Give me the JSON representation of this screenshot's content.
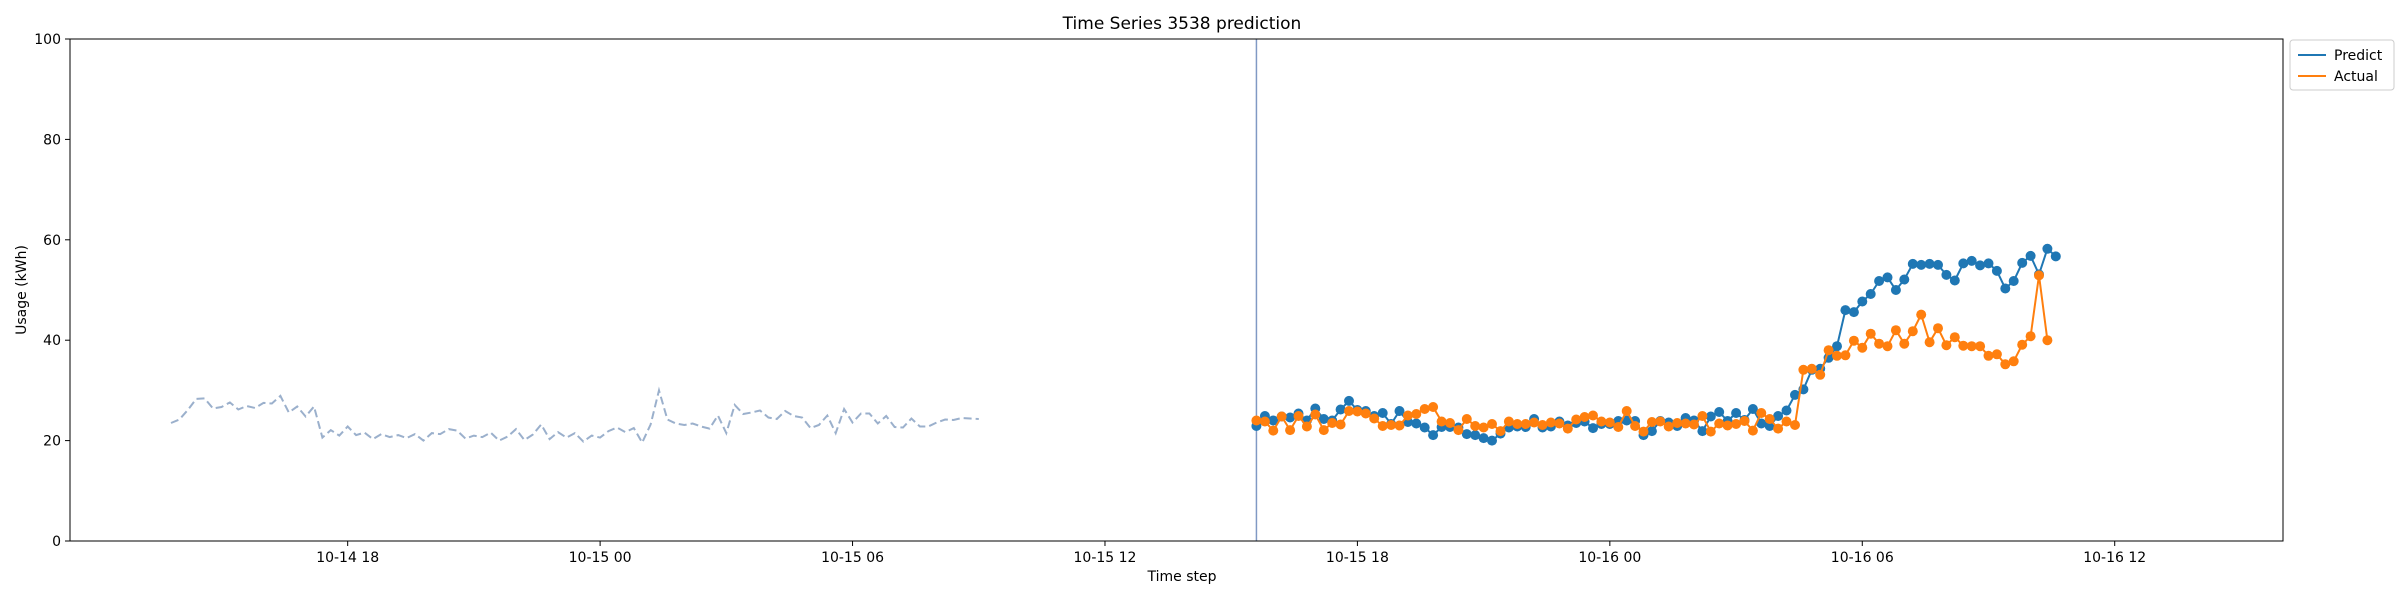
{
  "chart_data": {
    "type": "line",
    "title": "Time Series 3538 prediction",
    "xlabel": "Time step",
    "ylabel": "Usage (kWh)",
    "ylim": [
      0,
      100
    ],
    "yticks": [
      0,
      20,
      40,
      60,
      80,
      100
    ],
    "xlim": [
      -9,
      254
    ],
    "xticks": [
      {
        "value": 24,
        "label": "10-14 18"
      },
      {
        "value": 54,
        "label": "10-15 00"
      },
      {
        "value": 84,
        "label": "10-15 06"
      },
      {
        "value": 114,
        "label": "10-15 12"
      },
      {
        "value": 144,
        "label": "10-15 18"
      },
      {
        "value": 174,
        "label": "10-16 00"
      },
      {
        "value": 204,
        "label": "10-16 06"
      },
      {
        "value": 234,
        "label": "10-16 12"
      }
    ],
    "forecast_start": 132,
    "legend": {
      "position": "top-right",
      "entries": [
        "Predict",
        "Actual"
      ]
    },
    "colors": {
      "predict": "#1f77b4",
      "actual": "#ff7f0e",
      "history": "#9bb0cc",
      "vline": "#8099c4"
    },
    "history": {
      "x_start": 3,
      "values": [
        23.5,
        24.2,
        26.1,
        28.3,
        28.4,
        26.4,
        26.7,
        27.6,
        26.2,
        26.9,
        26.5,
        27.5,
        27.4,
        28.9,
        25.6,
        26.8,
        24.8,
        26.8,
        20.6,
        22.1,
        21.0,
        22.8,
        21.1,
        21.6,
        20.3,
        21.3,
        20.7,
        21.1,
        20.5,
        21.3,
        20.0,
        21.5,
        21.3,
        22.3,
        22.0,
        20.4,
        21.0,
        20.7,
        21.6,
        20.0,
        20.8,
        22.3,
        20.1,
        21.2,
        23.2,
        20.3,
        21.7,
        20.6,
        21.5,
        19.8,
        21.0,
        20.6,
        21.9,
        22.6,
        21.7,
        22.5,
        19.6,
        23.2,
        30.0,
        24.2,
        23.4,
        23.1,
        23.4,
        22.8,
        22.4,
        25.0,
        21.5,
        27.1,
        25.3,
        25.6,
        26.0,
        24.6,
        24.3,
        25.9,
        24.9,
        24.6,
        22.5,
        23.1,
        25.0,
        21.5,
        26.3,
        23.6,
        25.4,
        25.4,
        23.4,
        24.9,
        22.7,
        22.6,
        24.4,
        22.8,
        22.8,
        23.6,
        24.2,
        24.1,
        24.5,
        24.4,
        24.3
      ]
    },
    "series": [
      {
        "name": "Predict",
        "x_start": 132,
        "values": [
          22.9,
          24.9,
          24.0,
          24.8,
          24.6,
          25.4,
          24.0,
          26.4,
          24.3,
          24.0,
          26.2,
          27.9,
          26.1,
          25.9,
          24.9,
          25.5,
          23.3,
          25.9,
          23.7,
          23.4,
          22.6,
          21.1,
          22.7,
          22.7,
          22.6,
          21.3,
          21.1,
          20.5,
          20.0,
          21.4,
          22.6,
          22.8,
          22.7,
          24.3,
          22.6,
          22.8,
          23.8,
          23.0,
          23.5,
          23.8,
          22.5,
          23.3,
          23.3,
          23.9,
          24.0,
          23.9,
          21.1,
          21.9,
          23.9,
          23.6,
          22.9,
          24.5,
          24.0,
          21.9,
          24.8,
          25.7,
          23.9,
          25.5,
          24.1,
          26.3,
          23.4,
          22.9,
          24.9,
          26.0,
          29.1,
          30.2,
          34.1,
          34.3,
          36.5,
          38.8,
          46.0,
          45.6,
          47.7,
          49.2,
          51.8,
          52.5,
          50.0,
          52.1,
          55.2,
          55.0,
          55.2,
          55.0,
          53.0,
          51.9,
          55.3,
          55.8,
          54.9,
          55.3,
          53.8,
          50.3,
          51.8,
          55.4,
          56.8,
          53.1,
          58.2,
          56.7
        ]
      },
      {
        "name": "Actual",
        "x_start": 132,
        "values": [
          24.0,
          23.8,
          22.0,
          24.8,
          22.1,
          24.9,
          22.8,
          25.2,
          22.1,
          23.5,
          23.2,
          25.9,
          25.8,
          25.4,
          24.4,
          22.9,
          23.1,
          23.0,
          25.0,
          25.3,
          26.3,
          26.7,
          23.8,
          23.5,
          22.1,
          24.3,
          22.9,
          22.6,
          23.3,
          21.9,
          23.8,
          23.3,
          23.3,
          23.6,
          23.1,
          23.6,
          23.4,
          22.4,
          24.2,
          24.7,
          25.0,
          23.8,
          23.6,
          22.7,
          25.9,
          22.9,
          21.8,
          23.7,
          23.8,
          22.8,
          23.5,
          23.4,
          23.2,
          24.9,
          21.8,
          23.4,
          23.0,
          23.3,
          23.9,
          22.0,
          25.5,
          24.3,
          22.4,
          23.8,
          23.1,
          34.1,
          34.3,
          33.1,
          38.0,
          36.9,
          37.0,
          39.9,
          38.5,
          41.3,
          39.3,
          38.8,
          42.0,
          39.3,
          41.8,
          45.1,
          39.6,
          42.4,
          39.0,
          40.6,
          38.9,
          38.8,
          38.8,
          36.9,
          37.2,
          35.2,
          35.8,
          39.1,
          40.8,
          52.9,
          40.0
        ]
      }
    ]
  }
}
